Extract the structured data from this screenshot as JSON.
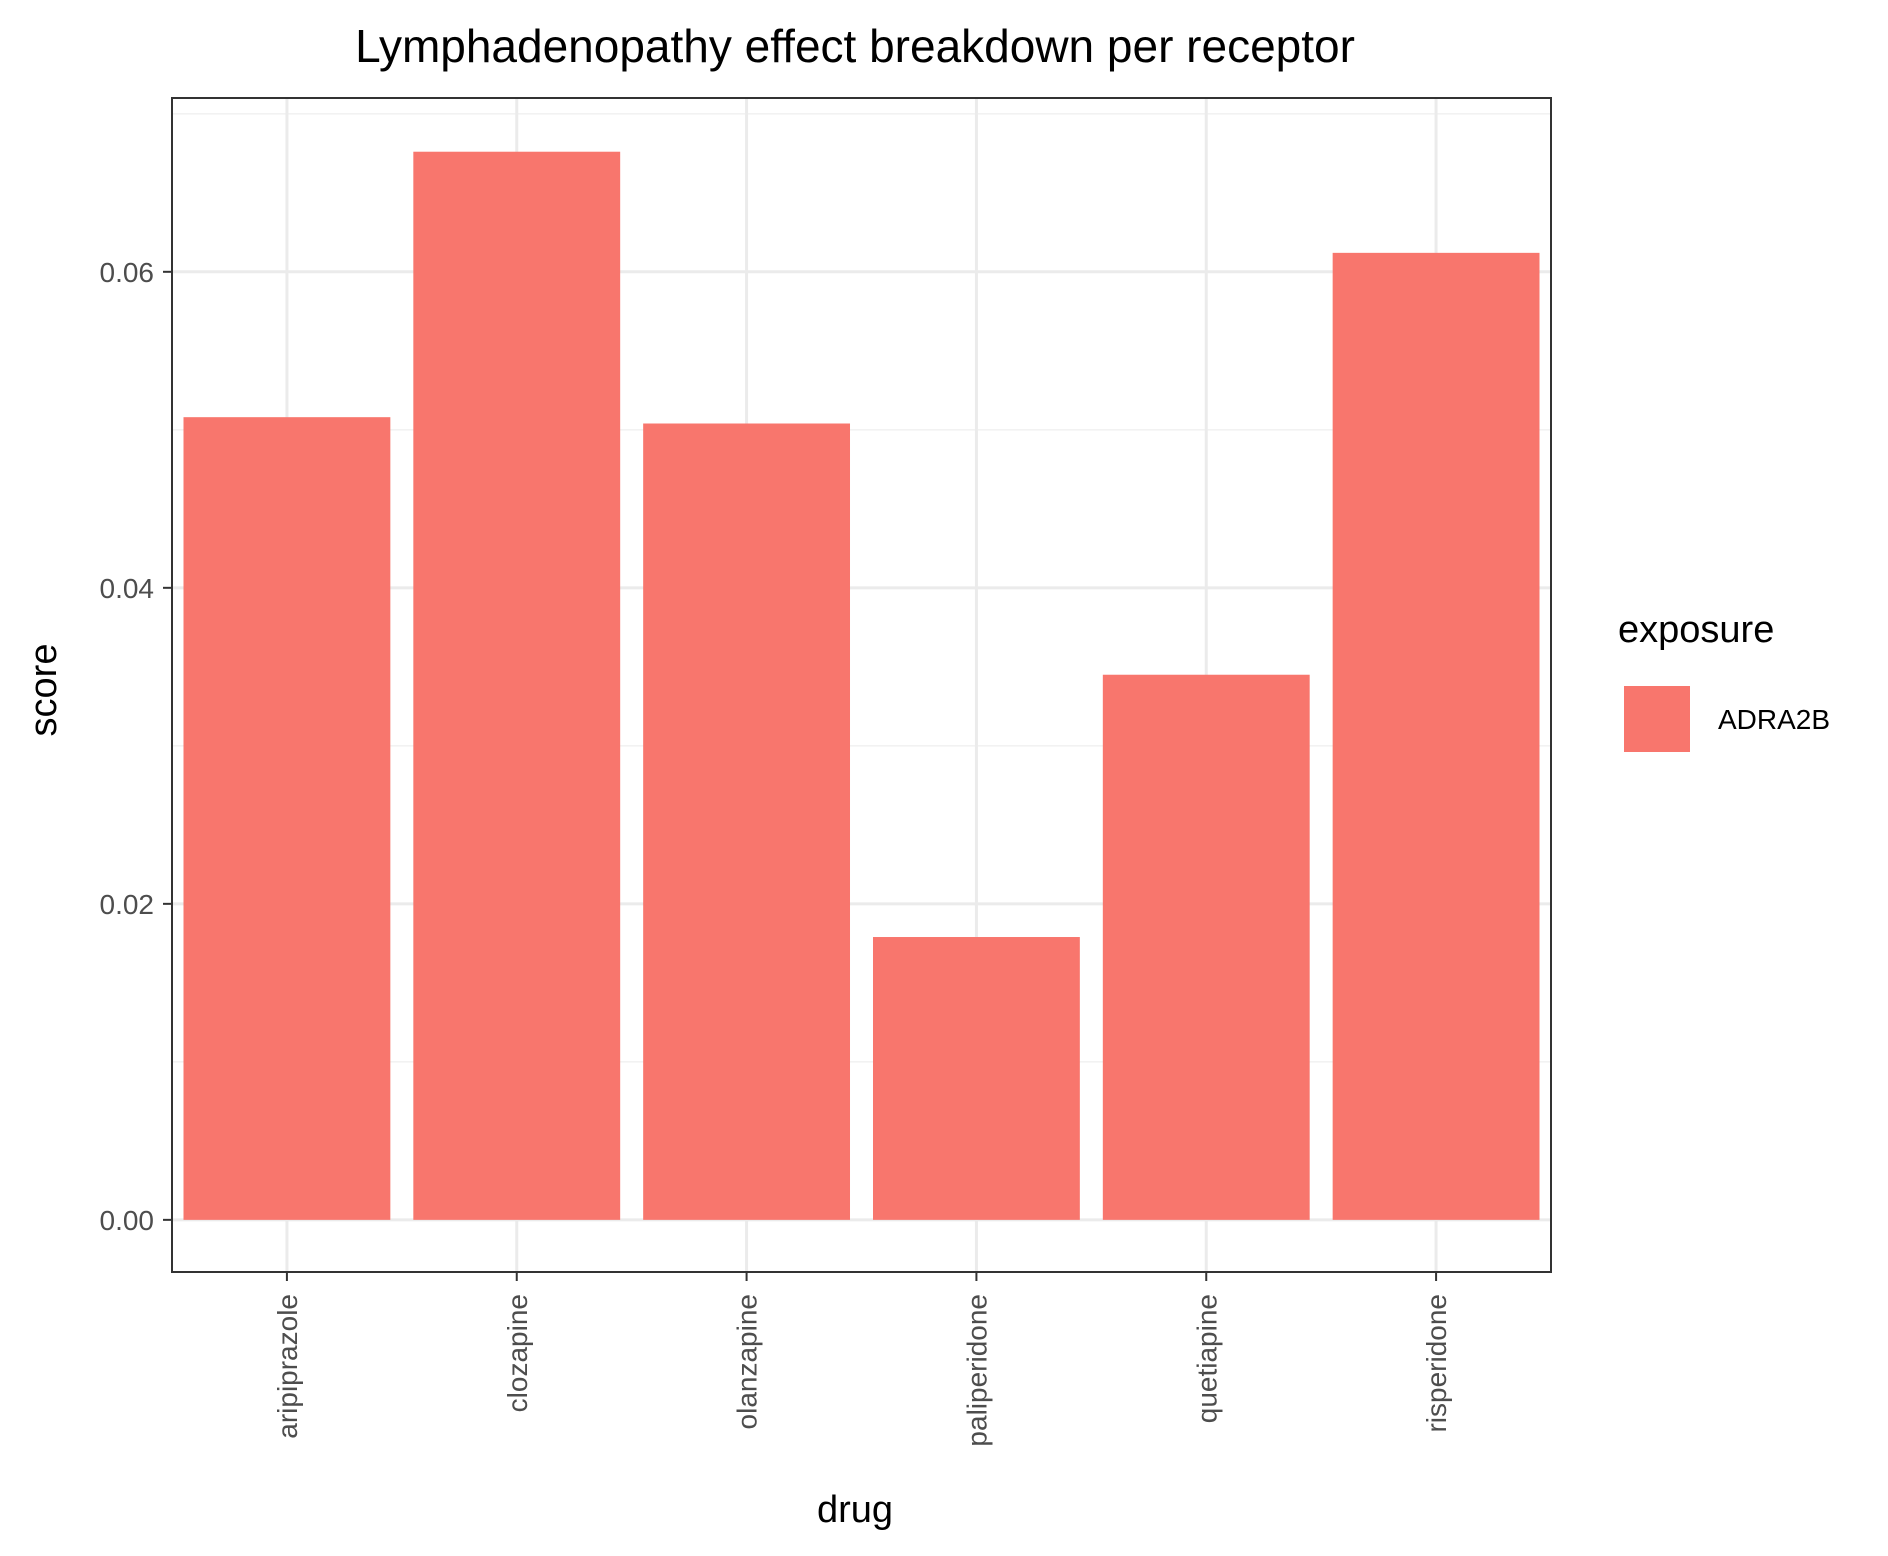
{
  "chart_data": {
    "type": "bar",
    "title": "Lymphadenopathy effect breakdown per receptor",
    "xlabel": "drug",
    "ylabel": "score",
    "categories": [
      "aripiprazole",
      "clozapine",
      "olanzapine",
      "paliperidone",
      "quetiapine",
      "risperidone"
    ],
    "series": [
      {
        "name": "ADRA2B",
        "values": [
          0.0508,
          0.0676,
          0.0504,
          0.0179,
          0.0345,
          0.0612
        ]
      }
    ],
    "yticks": [
      0.0,
      0.02,
      0.04,
      0.06
    ],
    "ytick_labels": [
      "0.00",
      "0.02",
      "0.04",
      "0.06"
    ],
    "ylim": [
      -0.0033,
      0.071
    ],
    "grid": true,
    "legend": {
      "title": "exposure",
      "placement": "right"
    },
    "colors": {
      "bar": "#F8766D",
      "panel_border": "#333333",
      "grid_major": "#EBEBEB",
      "grid_minor": "#F2F2F2",
      "tick_text": "#4D4D4D"
    }
  }
}
